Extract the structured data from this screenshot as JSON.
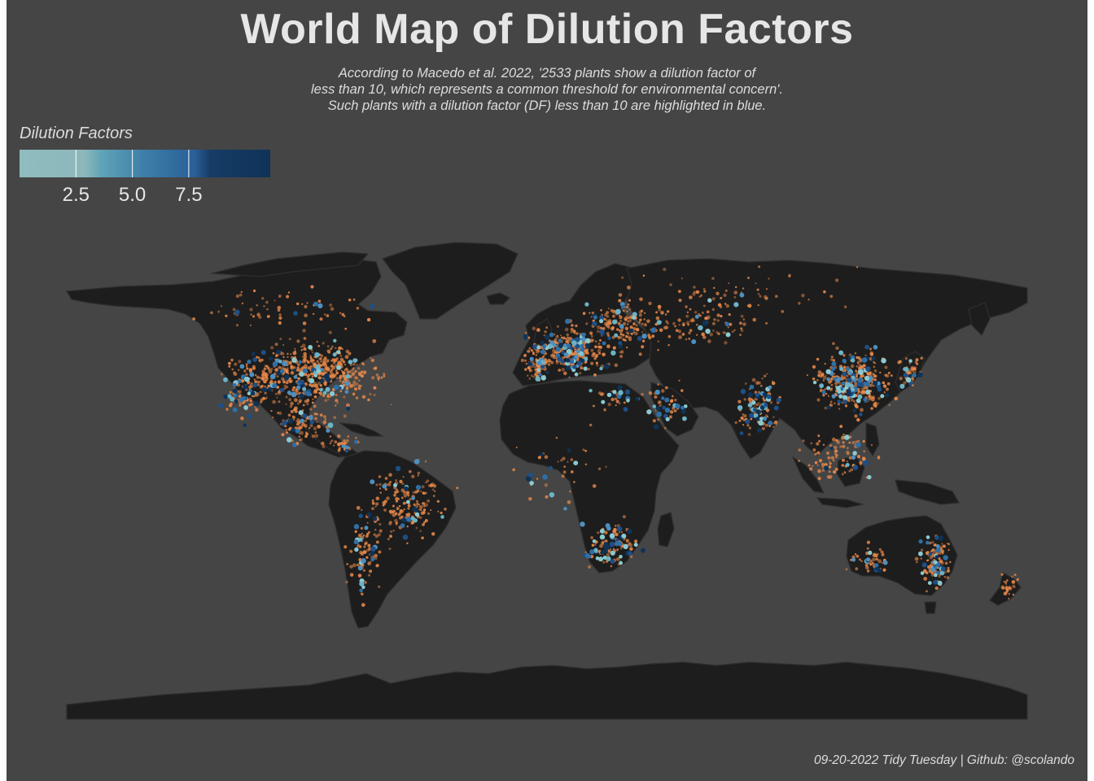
{
  "title": "World Map of Dilution Factors",
  "subtitle": [
    "According to Macedo et al. 2022, '2533 plants show a dilution factor of",
    "less than 10, which represents a common threshold for environmental concern'.",
    "Such plants with a dilution factor (DF) less than 10 are highlighted in blue."
  ],
  "legend": {
    "title": "Dilution Factors",
    "ticks": [
      "2.5",
      "5.0",
      "7.5"
    ],
    "tick_values": [
      2.5,
      5.0,
      7.5
    ],
    "range": [
      0,
      10
    ],
    "colors": [
      "#8fbcbf",
      "#5ea3b7",
      "#2f6fa6",
      "#0f3357"
    ]
  },
  "caption": "09-20-2022 Tidy Tuesday | Github: @scolando",
  "colors": {
    "background": "#454545",
    "land": "#1d1d1d",
    "land_outline": "#2c2c2c",
    "high_df_points": "#e8894a",
    "low_df_light": "#8cc9cf",
    "low_df_dark": "#0f3357"
  },
  "map_layers": [
    "countries",
    "wastewater-plants-df-above-10",
    "wastewater-plants-df-below-10"
  ]
}
